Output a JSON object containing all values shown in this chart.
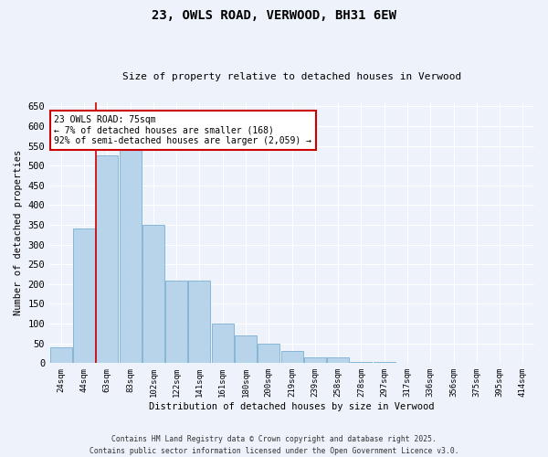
{
  "title": "23, OWLS ROAD, VERWOOD, BH31 6EW",
  "subtitle": "Size of property relative to detached houses in Verwood",
  "xlabel": "Distribution of detached houses by size in Verwood",
  "ylabel": "Number of detached properties",
  "bar_color": "#b8d4ea",
  "bar_edge_color": "#7aafd4",
  "background_color": "#eef2fb",
  "grid_color": "#ffffff",
  "categories": [
    "24sqm",
    "44sqm",
    "63sqm",
    "83sqm",
    "102sqm",
    "122sqm",
    "141sqm",
    "161sqm",
    "180sqm",
    "200sqm",
    "219sqm",
    "239sqm",
    "258sqm",
    "278sqm",
    "297sqm",
    "317sqm",
    "336sqm",
    "356sqm",
    "375sqm",
    "395sqm",
    "414sqm"
  ],
  "values": [
    40,
    340,
    525,
    540,
    350,
    210,
    210,
    100,
    70,
    50,
    30,
    15,
    15,
    2,
    2,
    0,
    0,
    0,
    0,
    0,
    0
  ],
  "vline_position": 1.5,
  "annotation_text": "23 OWLS ROAD: 75sqm\n← 7% of detached houses are smaller (168)\n92% of semi-detached houses are larger (2,059) →",
  "annotation_box_color": "#ffffff",
  "annotation_box_edge_color": "#cc0000",
  "vline_color": "#cc0000",
  "ylim": [
    0,
    660
  ],
  "yticks": [
    0,
    50,
    100,
    150,
    200,
    250,
    300,
    350,
    400,
    450,
    500,
    550,
    600,
    650
  ],
  "footer_line1": "Contains HM Land Registry data © Crown copyright and database right 2025.",
  "footer_line2": "Contains public sector information licensed under the Open Government Licence v3.0."
}
